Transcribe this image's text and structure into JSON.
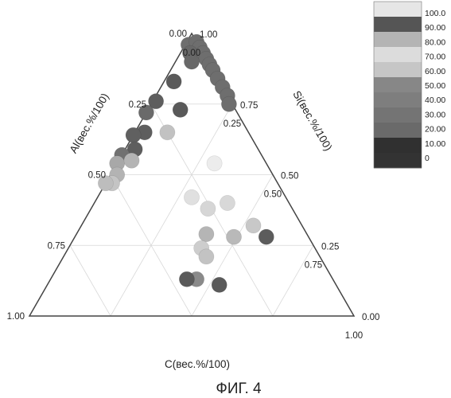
{
  "chart_data": {
    "type": "scatter",
    "subtype": "ternary",
    "axes": {
      "al": {
        "label": "Al(вес.%/100)",
        "ticks": [
          "0.00",
          "0.25",
          "0.50",
          "0.75",
          "1.00"
        ]
      },
      "si": {
        "label": "Si(вес.%/100)",
        "ticks": [
          "1.00",
          "0.75",
          "0.50",
          "0.25",
          "0.00"
        ]
      },
      "c": {
        "label": "C(вес.%/100)",
        "ticks": [
          "0.00",
          "0.25",
          "0.50",
          "0.75",
          "1.00"
        ]
      }
    },
    "grid": true,
    "colorbar": {
      "position": "top-right",
      "labels": [
        "100.0",
        "90.00",
        "80.00",
        "70.00",
        "60.00",
        "50.00",
        "40.00",
        "30.00",
        "20.00",
        "10.00",
        "0"
      ],
      "colors": [
        "#e6e6e6",
        "#555555",
        "#b4b4b4",
        "#dcdcdc",
        "#c6c6c6",
        "#878787",
        "#7e7e7e",
        "#747474",
        "#6a6a6a",
        "#303030",
        "#333333"
      ]
    },
    "points": [
      {
        "al": 0.03,
        "c": 0.01,
        "color": "#6e6e6e"
      },
      {
        "al": 0.0,
        "c": 0.03,
        "color": "#6e6e6e"
      },
      {
        "al": 0.0,
        "c": 0.05,
        "color": "#6e6e6e"
      },
      {
        "al": 0.0,
        "c": 0.07,
        "color": "#6e6e6e"
      },
      {
        "al": 0.0,
        "c": 0.09,
        "color": "#6e6e6e"
      },
      {
        "al": 0.0,
        "c": 0.11,
        "color": "#6e6e6e"
      },
      {
        "al": 0.0,
        "c": 0.13,
        "color": "#6e6e6e"
      },
      {
        "al": 0.0,
        "c": 0.16,
        "color": "#6e6e6e"
      },
      {
        "al": 0.0,
        "c": 0.19,
        "color": "#6e6e6e"
      },
      {
        "al": 0.0,
        "c": 0.22,
        "color": "#6e6e6e"
      },
      {
        "al": 0.01,
        "c": 0.24,
        "color": "#6e6e6e"
      },
      {
        "al": 0.04,
        "c": 0.03,
        "color": "#686868"
      },
      {
        "al": 0.05,
        "c": 0.05,
        "color": "#686868"
      },
      {
        "al": 0.14,
        "c": 0.03,
        "color": "#5a5a5a"
      },
      {
        "al": 0.17,
        "c": 0.1,
        "color": "#595959"
      },
      {
        "al": 0.23,
        "c": 0.01,
        "color": "#5e5e5e"
      },
      {
        "al": 0.28,
        "c": 0.0,
        "color": "#6a6a6a"
      },
      {
        "al": 0.32,
        "c": 0.03,
        "color": "#5e5e5e"
      },
      {
        "al": 0.25,
        "c": 0.1,
        "color": "#c2c2c2"
      },
      {
        "al": 0.36,
        "c": 0.0,
        "color": "#606060"
      },
      {
        "al": 0.38,
        "c": 0.03,
        "color": "#5e5e5e"
      },
      {
        "al": 0.43,
        "c": 0.0,
        "color": "#707070"
      },
      {
        "al": 0.46,
        "c": 0.0,
        "color": "#a8a8a8"
      },
      {
        "al": 0.48,
        "c": 0.02,
        "color": "#b3b3b3"
      },
      {
        "al": 0.51,
        "c": 0.02,
        "color": "#c4c4c4"
      },
      {
        "al": 0.53,
        "c": 0.0,
        "color": "#bdbdbd"
      },
      {
        "al": 0.41,
        "c": 0.04,
        "color": "#b4b4b4"
      },
      {
        "al": 0.29,
        "c": 0.29,
        "color": "#e0e0e0"
      },
      {
        "al": 0.16,
        "c": 0.3,
        "color": "#ececec"
      },
      {
        "al": 0.26,
        "c": 0.36,
        "color": "#d6d6d6"
      },
      {
        "al": 0.19,
        "c": 0.41,
        "color": "#d8d8d8"
      },
      {
        "al": 0.23,
        "c": 0.49,
        "color": "#b9b9b9"
      },
      {
        "al": 0.15,
        "c": 0.53,
        "color": "#c8c8c8"
      },
      {
        "al": 0.13,
        "c": 0.59,
        "color": "#5c5c5c"
      },
      {
        "al": 0.31,
        "c": 0.4,
        "color": "#b5b5b5"
      },
      {
        "al": 0.35,
        "c": 0.41,
        "color": "#cdcdcd"
      },
      {
        "al": 0.35,
        "c": 0.44,
        "color": "#c3c3c3"
      },
      {
        "al": 0.42,
        "c": 0.45,
        "color": "#8a8a8a"
      },
      {
        "al": 0.45,
        "c": 0.42,
        "color": "#5a5a5a"
      },
      {
        "al": 0.36,
        "c": 0.53,
        "color": "#5a5a5a"
      }
    ]
  },
  "caption": "ФИГ. 4"
}
